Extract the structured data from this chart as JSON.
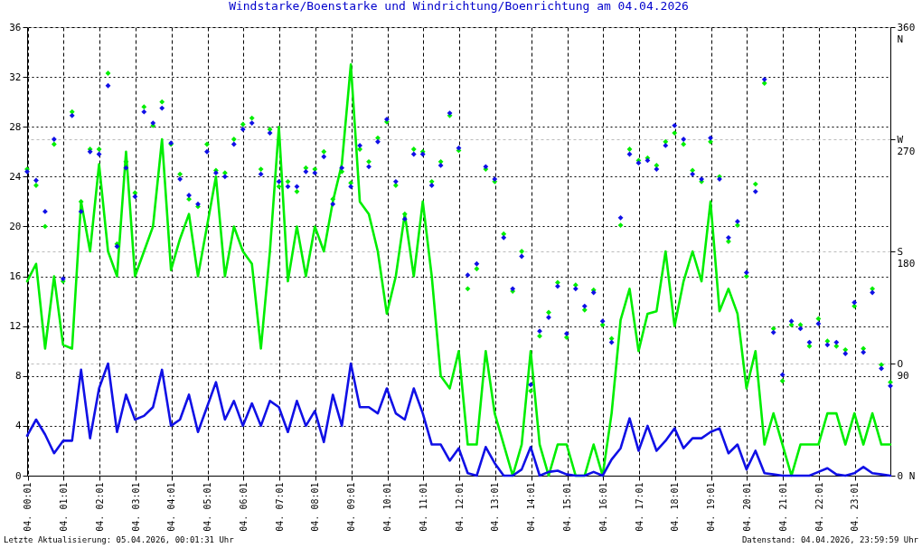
{
  "chart_data": {
    "type": "line",
    "title": "Windstarke/Boenstarke und Windrichtung/Boenrichtung am 04.04.2026",
    "x": [
      "2026-04-04T00:00",
      "2026-04-04T00:15",
      "2026-04-04T00:30",
      "2026-04-04T00:45",
      "2026-04-04T01:00",
      "2026-04-04T01:15",
      "2026-04-04T01:30",
      "2026-04-04T01:45",
      "2026-04-04T02:00",
      "2026-04-04T02:15",
      "2026-04-04T02:30",
      "2026-04-04T02:45",
      "2026-04-04T03:00",
      "2026-04-04T03:15",
      "2026-04-04T03:30",
      "2026-04-04T03:45",
      "2026-04-04T04:00",
      "2026-04-04T04:15",
      "2026-04-04T04:30",
      "2026-04-04T04:45",
      "2026-04-04T05:00",
      "2026-04-04T05:15",
      "2026-04-04T05:30",
      "2026-04-04T05:45",
      "2026-04-04T06:00",
      "2026-04-04T06:15",
      "2026-04-04T06:30",
      "2026-04-04T06:45",
      "2026-04-04T07:00",
      "2026-04-04T07:15",
      "2026-04-04T07:30",
      "2026-04-04T07:45",
      "2026-04-04T08:00",
      "2026-04-04T08:15",
      "2026-04-04T08:30",
      "2026-04-04T08:45",
      "2026-04-04T09:00",
      "2026-04-04T09:15",
      "2026-04-04T09:30",
      "2026-04-04T09:45",
      "2026-04-04T10:00",
      "2026-04-04T10:15",
      "2026-04-04T10:30",
      "2026-04-04T10:45",
      "2026-04-04T11:00",
      "2026-04-04T11:15",
      "2026-04-04T11:30",
      "2026-04-04T11:45",
      "2026-04-04T12:00",
      "2026-04-04T12:15",
      "2026-04-04T12:30",
      "2026-04-04T12:45",
      "2026-04-04T13:00",
      "2026-04-04T13:15",
      "2026-04-04T13:30",
      "2026-04-04T13:45",
      "2026-04-04T14:00",
      "2026-04-04T14:15",
      "2026-04-04T14:30",
      "2026-04-04T14:45",
      "2026-04-04T15:00",
      "2026-04-04T15:15",
      "2026-04-04T15:30",
      "2026-04-04T15:45",
      "2026-04-04T16:00",
      "2026-04-04T16:15",
      "2026-04-04T16:30",
      "2026-04-04T16:45",
      "2026-04-04T17:00",
      "2026-04-04T17:15",
      "2026-04-04T17:30",
      "2026-04-04T17:45",
      "2026-04-04T18:00",
      "2026-04-04T18:15",
      "2026-04-04T18:30",
      "2026-04-04T18:45",
      "2026-04-04T19:00",
      "2026-04-04T19:15",
      "2026-04-04T19:30",
      "2026-04-04T19:45",
      "2026-04-04T20:00",
      "2026-04-04T20:15",
      "2026-04-04T20:30",
      "2026-04-04T20:45",
      "2026-04-04T21:00",
      "2026-04-04T21:15",
      "2026-04-04T21:30",
      "2026-04-04T21:45",
      "2026-04-04T22:00",
      "2026-04-04T22:15",
      "2026-04-04T22:30",
      "2026-04-04T22:45",
      "2026-04-04T23:00",
      "2026-04-04T23:15",
      "2026-04-04T23:30",
      "2026-04-04T23:45",
      "2026-04-05T00:00"
    ],
    "series": [
      {
        "type": "scatter",
        "axis": "y2",
        "color": "#00ee00",
        "values": [
          246,
          233,
          200,
          266,
          156,
          292,
          220,
          262,
          262,
          323,
          186,
          252,
          227,
          296,
          281,
          300,
          266,
          242,
          222,
          216,
          266,
          245,
          243,
          270,
          282,
          287,
          246,
          278,
          232,
          236,
          228,
          247,
          246,
          260,
          222,
          244,
          235,
          262,
          252,
          271,
          284,
          233,
          210,
          262,
          260,
          236,
          252,
          289,
          261,
          150,
          166,
          246,
          236,
          194,
          148,
          180,
          68,
          112,
          131,
          155,
          111,
          153,
          133,
          149,
          121,
          110,
          201,
          262,
          253,
          255,
          249,
          268,
          275,
          266,
          245,
          236,
          268,
          240,
          188,
          201,
          160,
          234,
          315,
          118,
          76,
          121,
          121,
          104,
          126,
          108,
          104,
          101,
          136,
          102,
          150,
          89,
          75
        ]
      },
      {
        "type": "scatter",
        "axis": "y2",
        "color": "#1010e6",
        "values": [
          244,
          237,
          212,
          270,
          158,
          289,
          212,
          260,
          258,
          313,
          184,
          247,
          224,
          292,
          283,
          295,
          267,
          238,
          225,
          218,
          260,
          243,
          240,
          266,
          278,
          283,
          242,
          275,
          236,
          232,
          232,
          244,
          243,
          256,
          218,
          247,
          232,
          265,
          248,
          268,
          286,
          236,
          206,
          258,
          258,
          233,
          249,
          291,
          263,
          161,
          170,
          248,
          238,
          191,
          150,
          176,
          73,
          116,
          127,
          152,
          114,
          150,
          136,
          147,
          124,
          107,
          207,
          258,
          251,
          253,
          246,
          265,
          281,
          270,
          242,
          238,
          271,
          238,
          191,
          204,
          163,
          228,
          318,
          115,
          81,
          124,
          118,
          107,
          122,
          105,
          107,
          98,
          139,
          99,
          147,
          86,
          72
        ]
      },
      {
        "marker": "none",
        "color": "#00ee00",
        "values": [
          15.6,
          17.0,
          10.2,
          16.0,
          10.5,
          10.2,
          22.0,
          18.0,
          25.0,
          18.0,
          16.0,
          26.0,
          16.0,
          18.0,
          20.0,
          27.0,
          16.5,
          19.0,
          21.0,
          16.0,
          20.0,
          24.0,
          16.0,
          20.0,
          18.0,
          17.0,
          10.2,
          18.0,
          28.0,
          15.6,
          20.0,
          16.0,
          20.0,
          18.0,
          22.0,
          25.0,
          33.0,
          22.0,
          21.0,
          18.0,
          13.0,
          16.0,
          21.0,
          16.0,
          22.0,
          16.0,
          8.0,
          7.0,
          10.0,
          2.5,
          2.5,
          10.0,
          5.0,
          2.5,
          0.0,
          2.5,
          10.0,
          2.5,
          0.0,
          2.5,
          2.5,
          0.0,
          0.0,
          2.5,
          0.0,
          5.0,
          12.5,
          15.0,
          10.0,
          13.0,
          13.2,
          18.0,
          12.0,
          15.6,
          18.0,
          15.6,
          22.0,
          13.2,
          15.0,
          13.0,
          7.0,
          10.0,
          2.5,
          5.0,
          2.5,
          0.0,
          2.5,
          2.5,
          2.5,
          5.0,
          5.0,
          2.5,
          5.0,
          2.5,
          5.0,
          2.5,
          2.5
        ]
      },
      {
        "marker": "none",
        "color": "#1010e6",
        "values": [
          3.2,
          4.5,
          3.3,
          1.8,
          2.8,
          2.8,
          8.5,
          3.0,
          7.0,
          9.0,
          3.5,
          6.5,
          4.5,
          4.8,
          5.5,
          8.5,
          4.0,
          4.5,
          6.5,
          3.5,
          5.5,
          7.5,
          4.5,
          6.0,
          4.0,
          5.8,
          4.0,
          6.0,
          5.5,
          3.5,
          6.0,
          4.0,
          5.2,
          2.7,
          6.5,
          4.0,
          9.0,
          5.5,
          5.5,
          5.0,
          7.0,
          5.0,
          4.5,
          7.0,
          5.0,
          2.5,
          2.5,
          1.2,
          2.2,
          0.2,
          0.0,
          2.3,
          1.0,
          0.0,
          0.0,
          0.5,
          2.3,
          0.0,
          0.3,
          0.4,
          0.1,
          0.0,
          0.0,
          0.3,
          0.0,
          1.3,
          2.2,
          4.6,
          2.0,
          4.0,
          2.0,
          2.8,
          3.8,
          2.2,
          3.0,
          3.0,
          3.5,
          3.8,
          1.8,
          2.5,
          0.5,
          2.0,
          0.2,
          0.1,
          0.0,
          0.0,
          0.0,
          0.0,
          0.3,
          0.6,
          0.1,
          0.0,
          0.2,
          0.7,
          0.2,
          0.1,
          0.0
        ]
      }
    ],
    "xlim": [
      "2026-04-04T00:00",
      "2026-04-05T00:00"
    ],
    "xticks": [
      {
        "value": "2026-04-04T00:01",
        "label": "04. 00:01"
      },
      {
        "value": "2026-04-04T01:01",
        "label": "04. 01:01"
      },
      {
        "value": "2026-04-04T02:01",
        "label": "04. 02:01"
      },
      {
        "value": "2026-04-04T03:01",
        "label": "04. 03:01"
      },
      {
        "value": "2026-04-04T04:01",
        "label": "04. 04:01"
      },
      {
        "value": "2026-04-04T05:01",
        "label": "04. 05:01"
      },
      {
        "value": "2026-04-04T06:01",
        "label": "04. 06:01"
      },
      {
        "value": "2026-04-04T07:01",
        "label": "04. 07:01"
      },
      {
        "value": "2026-04-04T08:01",
        "label": "04. 08:01"
      },
      {
        "value": "2026-04-04T09:01",
        "label": "04. 09:01"
      },
      {
        "value": "2026-04-04T10:01",
        "label": "04. 10:01"
      },
      {
        "value": "2026-04-04T11:01",
        "label": "04. 11:01"
      },
      {
        "value": "2026-04-04T12:01",
        "label": "04. 12:01"
      },
      {
        "value": "2026-04-04T13:01",
        "label": "04. 13:01"
      },
      {
        "value": "2026-04-04T14:01",
        "label": "04. 14:01"
      },
      {
        "value": "2026-04-04T15:01",
        "label": "04. 15:01"
      },
      {
        "value": "2026-04-04T16:01",
        "label": "04. 16:01"
      },
      {
        "value": "2026-04-04T17:01",
        "label": "04. 17:01"
      },
      {
        "value": "2026-04-04T18:01",
        "label": "04. 18:01"
      },
      {
        "value": "2026-04-04T19:01",
        "label": "04. 19:01"
      },
      {
        "value": "2026-04-04T20:01",
        "label": "04. 20:01"
      },
      {
        "value": "2026-04-04T21:01",
        "label": "04. 21:01"
      },
      {
        "value": "2026-04-04T22:01",
        "label": "04. 22:01"
      },
      {
        "value": "2026-04-04T23:01",
        "label": "04. 23:01"
      }
    ],
    "ylim": [
      0,
      36
    ],
    "yticks": [
      0,
      4,
      8,
      12,
      16,
      20,
      24,
      28,
      32,
      36
    ],
    "y2lim": [
      0,
      360
    ],
    "y2ticks": [
      {
        "value": 0,
        "label": "0 N"
      },
      {
        "value": 90,
        "label": "O\n90"
      },
      {
        "value": 180,
        "label": "S\n180"
      },
      {
        "value": 270,
        "label": "W\n270"
      },
      {
        "value": 360,
        "label": "360\nN"
      }
    ],
    "grid": true,
    "marker": "diamond",
    "line_style": "solid",
    "annotations": [
      "Letzte Aktualisierung: 05.04.2026, 00:01:31 Uhr",
      "Datenstand: 04.04.2026, 23:59:59 Uhr"
    ]
  }
}
